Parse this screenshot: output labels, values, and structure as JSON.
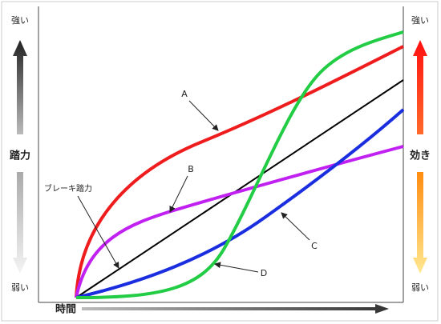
{
  "left_axis": {
    "top": "強い",
    "label": "踏力",
    "bottom": "弱い"
  },
  "right_axis": {
    "top": "強い",
    "label": "効き",
    "bottom": "弱い"
  },
  "x_axis": {
    "label": "時間"
  },
  "curves": [
    {
      "label": "A"
    },
    {
      "label": "B"
    },
    {
      "label": "C"
    },
    {
      "label": "D"
    },
    {
      "label": "ブレーキ踏力"
    }
  ]
}
